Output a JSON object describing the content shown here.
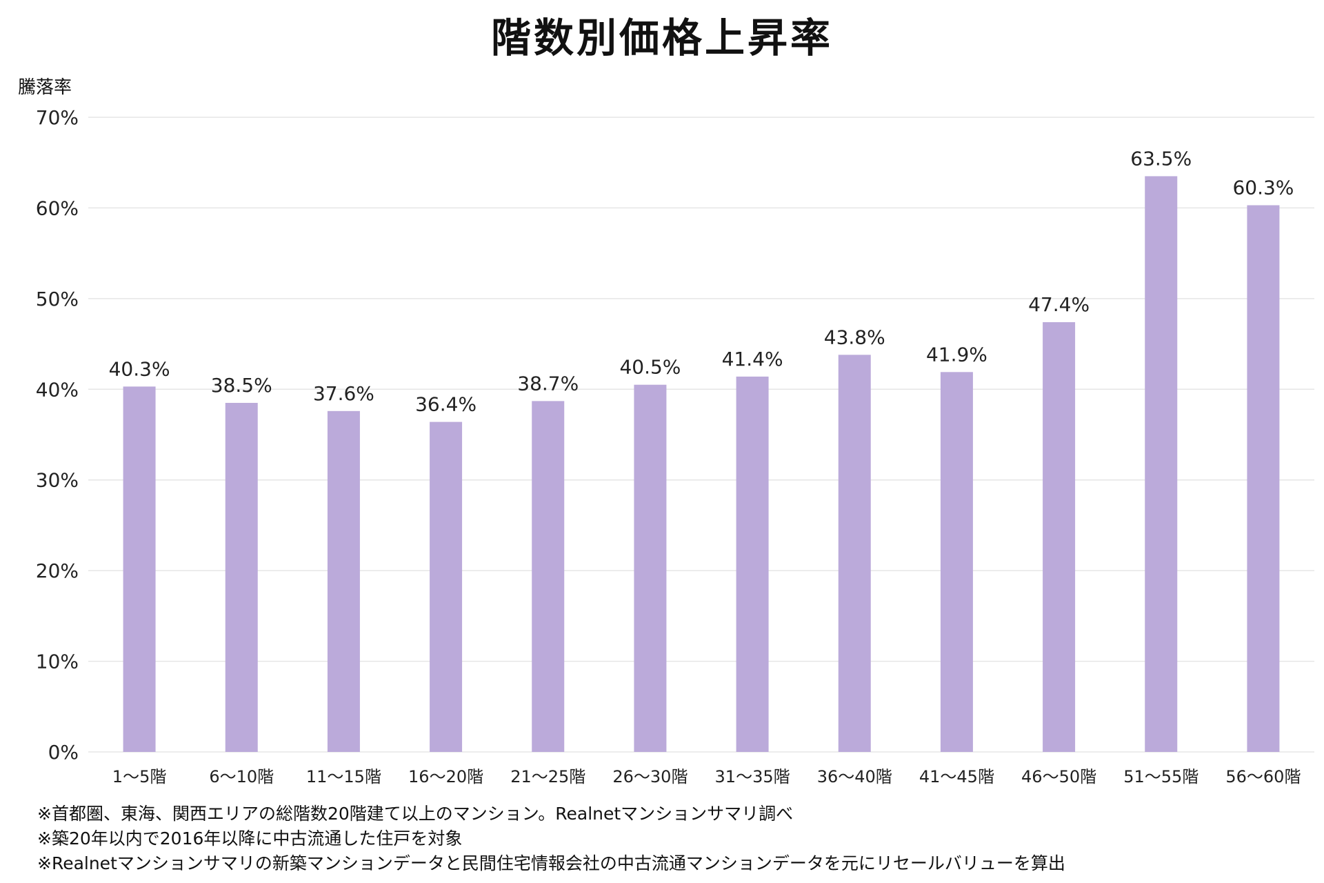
{
  "chart_data": {
    "type": "bar",
    "title": "階数別価格上昇率",
    "ylabel": "騰落率",
    "xlabel": "",
    "ylim": [
      0,
      70
    ],
    "yticks": [
      "0%",
      "10%",
      "20%",
      "30%",
      "40%",
      "50%",
      "60%",
      "70%"
    ],
    "grid": true,
    "legend": "none",
    "bar_color": "#bbaada",
    "categories": [
      "1〜5階",
      "6〜10階",
      "11〜15階",
      "16〜20階",
      "21〜25階",
      "26〜30階",
      "31〜35階",
      "36〜40階",
      "41〜45階",
      "46〜50階",
      "51〜55階",
      "56〜60階"
    ],
    "values": [
      40.3,
      38.5,
      37.6,
      36.4,
      38.7,
      40.5,
      41.4,
      43.8,
      41.9,
      47.4,
      63.5,
      60.3
    ],
    "value_labels": [
      "40.3%",
      "38.5%",
      "37.6%",
      "36.4%",
      "38.7%",
      "40.5%",
      "41.4%",
      "43.8%",
      "41.9%",
      "47.4%",
      "63.5%",
      "60.3%"
    ]
  },
  "notes": [
    "※首都圏、東海、関西エリアの総階数20階建て以上のマンション。Realnetマンションサマリ調べ",
    "※築20年以内で2016年以降に中古流通した住戸を対象",
    "※Realnetマンションサマリの新築マンションデータと民間住宅情報会社の中古流通マンションデータを元にリセールバリューを算出"
  ]
}
